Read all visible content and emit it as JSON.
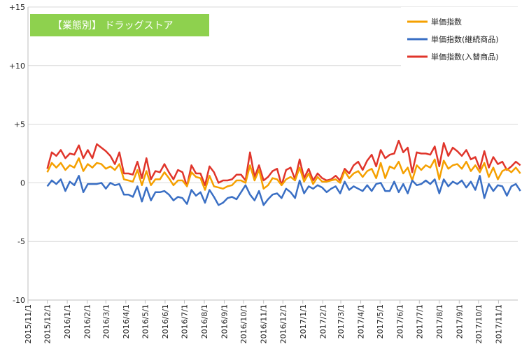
{
  "chart_data": {
    "type": "line",
    "title": "【業態別】 ドラッグストア",
    "title_bg": "#8ed14e",
    "ylim": [
      -10,
      15
    ],
    "y_ticks": [
      "+15",
      "+10",
      "+5",
      "0",
      "-5",
      "-10"
    ],
    "y_tick_values": [
      15,
      10,
      5,
      0,
      -5,
      -10
    ],
    "x_tick_labels": [
      "2015/11/1",
      "2015/12/1",
      "2016/1/1",
      "2016/2/1",
      "2016/3/1",
      "2016/4/1",
      "2016/5/1",
      "2016/6/1",
      "2016/7/1",
      "2016/8/1",
      "2016/9/1",
      "2016/10/1",
      "2016/11/1",
      "2016/12/1",
      "2017/1/1",
      "2017/2/1",
      "2017/3/1",
      "2017/4/1",
      "2017/5/1",
      "2017/6/1",
      "2017/7/1",
      "2017/8/1",
      "2017/9/1",
      "2017/10/1",
      "2017/11/1"
    ],
    "x_start": "2015-11-01",
    "x_end": "2017-12-01",
    "series_start": "2015-12-01",
    "step_days": 7,
    "legend_position": "top-right",
    "grid": "horizontal",
    "series": [
      {
        "name": "単価指数",
        "color": "#f5a000",
        "values": [
          0.9,
          1.7,
          1.3,
          1.7,
          1.1,
          1.5,
          1.3,
          2.1,
          1.0,
          1.6,
          1.3,
          1.7,
          1.6,
          1.2,
          1.4,
          1.1,
          1.6,
          0.3,
          0.2,
          0.1,
          1.1,
          -0.2,
          1.0,
          -0.2,
          0.3,
          0.3,
          0.9,
          0.4,
          -0.2,
          0.2,
          0.2,
          -0.3,
          0.9,
          0.5,
          0.4,
          -0.6,
          0.6,
          -0.3,
          -0.4,
          -0.5,
          -0.3,
          -0.2,
          0.2,
          0.2,
          0.0,
          1.5,
          0.2,
          1.1,
          -0.5,
          -0.2,
          0.4,
          0.3,
          -0.2,
          0.3,
          0.5,
          0.2,
          1.3,
          0.1,
          0.8,
          -0.1,
          0.5,
          0.1,
          0.1,
          0.2,
          0.3,
          0.0,
          1.0,
          0.4,
          0.8,
          1.0,
          0.5,
          1.0,
          1.2,
          0.4,
          1.7,
          0.4,
          1.4,
          1.2,
          1.8,
          0.8,
          1.3,
          0.2,
          1.5,
          1.1,
          1.5,
          1.3,
          2.0,
          0.3,
          1.9,
          1.2,
          1.5,
          1.6,
          1.2,
          1.8,
          1.0,
          1.5,
          0.9,
          1.7,
          0.5,
          1.3,
          0.3,
          1.0,
          1.2,
          0.9,
          1.3,
          0.8
        ]
      },
      {
        "name": "単価指数(継続商品)",
        "color": "#3a6fc4",
        "values": [
          -0.3,
          0.2,
          -0.1,
          0.3,
          -0.7,
          0.1,
          -0.2,
          0.6,
          -0.8,
          -0.1,
          -0.1,
          -0.1,
          0.0,
          -0.5,
          0.0,
          -0.2,
          -0.1,
          -1.0,
          -1.0,
          -1.2,
          -0.3,
          -1.6,
          -0.4,
          -1.5,
          -0.8,
          -0.8,
          -0.7,
          -1.0,
          -1.5,
          -1.2,
          -1.3,
          -1.8,
          -0.6,
          -1.1,
          -0.8,
          -1.7,
          -0.6,
          -1.2,
          -1.9,
          -1.7,
          -1.3,
          -1.2,
          -1.4,
          -0.8,
          -0.2,
          -1.0,
          -1.5,
          -0.7,
          -1.9,
          -1.4,
          -1.0,
          -0.9,
          -1.3,
          -0.5,
          -0.8,
          -1.3,
          0.2,
          -0.9,
          -0.3,
          -0.5,
          -0.2,
          -0.4,
          -0.8,
          -0.5,
          -0.3,
          -0.9,
          0.1,
          -0.6,
          -0.3,
          -0.5,
          -0.7,
          -0.2,
          -0.7,
          -0.1,
          0.0,
          -0.7,
          -0.7,
          0.1,
          -0.8,
          -0.1,
          -0.9,
          0.2,
          -0.2,
          -0.1,
          0.2,
          -0.1,
          0.3,
          -0.9,
          0.3,
          -0.3,
          0.1,
          -0.1,
          0.2,
          -0.4,
          0.1,
          -0.6,
          0.6,
          -1.3,
          -0.1,
          -0.7,
          -0.2,
          -0.3,
          -1.1,
          -0.3,
          -0.1,
          -0.7
        ]
      },
      {
        "name": "単価指数(入替商品)",
        "color": "#e0352b",
        "values": [
          1.2,
          2.6,
          2.3,
          2.8,
          2.1,
          2.5,
          2.4,
          3.2,
          2.1,
          2.8,
          2.1,
          3.3,
          3.0,
          2.7,
          2.3,
          1.6,
          2.6,
          0.8,
          0.8,
          0.7,
          1.8,
          0.4,
          2.1,
          0.3,
          1.0,
          0.9,
          1.6,
          0.9,
          0.3,
          1.1,
          0.9,
          -0.3,
          1.5,
          0.8,
          0.8,
          -0.2,
          1.4,
          0.9,
          0.0,
          0.2,
          0.2,
          0.3,
          0.7,
          0.7,
          0.2,
          2.6,
          0.5,
          1.5,
          0.2,
          0.5,
          1.0,
          1.2,
          -0.2,
          1.1,
          1.3,
          0.3,
          2.0,
          0.4,
          1.2,
          0.2,
          0.8,
          0.4,
          0.2,
          0.3,
          0.6,
          0.2,
          1.2,
          0.8,
          1.5,
          1.8,
          1.1,
          1.9,
          2.4,
          1.4,
          2.8,
          2.1,
          2.4,
          2.5,
          3.6,
          2.6,
          3.0,
          0.9,
          2.6,
          2.5,
          2.5,
          2.4,
          3.1,
          1.4,
          3.4,
          2.3,
          3.0,
          2.7,
          2.3,
          2.8,
          2.0,
          2.2,
          1.2,
          2.7,
          1.3,
          2.2,
          1.6,
          1.8,
          1.1,
          1.4,
          1.8,
          1.5
        ]
      }
    ]
  }
}
